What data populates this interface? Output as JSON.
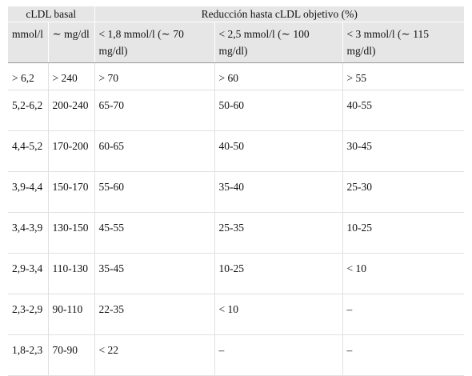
{
  "header": {
    "group_1": "cLDL basal",
    "group_2": "Reducción hasta cLDL objetivo (%)",
    "columns": [
      "mmol/l",
      "∼ mg/dl",
      "< 1,8 mmol/l (∼ 70 mg/dl)",
      "< 2,5 mmol/l (∼ 100 mg/dl)",
      "< 3 mmol/l (∼ 115 mg/dl)"
    ]
  },
  "table": {
    "rows": [
      [
        "> 6,2",
        "> 240",
        "> 70",
        "> 60",
        "> 55"
      ],
      [
        "5,2-6,2",
        "200-240",
        "65-70",
        "50-60",
        "40-55"
      ],
      [
        "4,4-5,2",
        "170-200",
        "60-65",
        "40-50",
        "30-45"
      ],
      [
        "3,9-4,4",
        "150-170",
        "55-60",
        "35-40",
        "25-30"
      ],
      [
        "3,4-3,9",
        "130-150",
        "45-55",
        "25-35",
        "10-25"
      ],
      [
        "2,9-3,4",
        "110-130",
        "35-45",
        "10-25",
        "< 10"
      ],
      [
        "2,3-2,9",
        "90-110",
        "22-35",
        "< 10",
        "–"
      ],
      [
        "1,8-2,3",
        "70-90",
        "< 22",
        "–",
        "–"
      ]
    ]
  }
}
